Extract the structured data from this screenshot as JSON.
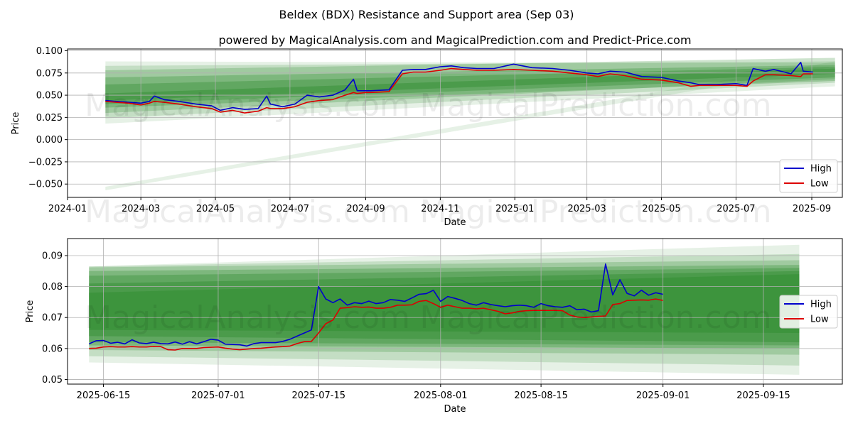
{
  "figure": {
    "title": "Beldex (BDX) Resistance and Support area (Sep 03)",
    "subtitle": "powered by MagicalAnalysis.com and MagicalPrediction.com and Predict-Price.com",
    "watermark_1": "MagicalAnalysis.com",
    "watermark_2": "MagicalPrediction.com"
  },
  "colors": {
    "high": "#0000cc",
    "low": "#dd0000",
    "band": "#2e8b2e",
    "grid": "#b0b0b0"
  },
  "chart_data": [
    {
      "type": "line",
      "name": "full-range",
      "xlabel": "Date",
      "ylabel": "Price",
      "xlim": [
        "2024-01-01",
        "2025-09-26"
      ],
      "ylim": [
        -0.065,
        0.102
      ],
      "x_ticks": [
        "2024-01",
        "2024-03",
        "2024-05",
        "2024-07",
        "2024-09",
        "2024-11",
        "2025-01",
        "2025-03",
        "2025-05",
        "2025-07",
        "2025-09"
      ],
      "y_ticks": [
        "0.100",
        "0.075",
        "0.050",
        "0.025",
        "0.000",
        "−0.025",
        "−0.050"
      ],
      "y_tick_values": [
        0.1,
        0.075,
        0.05,
        0.025,
        0.0,
        -0.025,
        -0.05
      ],
      "legend": [
        "High",
        "Low"
      ],
      "legend_position": "lower-right",
      "bands": [
        {
          "x": [
            "2024-02-01",
            "2025-09-20"
          ],
          "top": [
            0.088,
            0.086
          ],
          "bottom": [
            0.018,
            0.06
          ]
        },
        {
          "x": [
            "2024-02-01",
            "2025-09-20"
          ],
          "top": [
            0.083,
            0.088
          ],
          "bottom": [
            0.024,
            0.064
          ]
        },
        {
          "x": [
            "2024-02-01",
            "2025-09-20"
          ],
          "top": [
            0.078,
            0.092
          ],
          "bottom": [
            0.03,
            0.068
          ]
        },
        {
          "x": [
            "2024-02-01",
            "2025-09-20"
          ],
          "top": [
            0.07,
            0.084
          ],
          "bottom": [
            0.036,
            0.066
          ]
        },
        {
          "x": [
            "2024-02-01",
            "2025-09-20"
          ],
          "top": [
            0.062,
            0.082
          ],
          "bottom": [
            0.04,
            0.07
          ]
        },
        {
          "x": [
            "2024-02-01",
            "2025-09-20"
          ],
          "top": [
            0.052,
            0.08
          ],
          "bottom": [
            0.044,
            0.074
          ]
        },
        {
          "x": [
            "2024-02-01",
            "2025-09-20"
          ],
          "top": [
            -0.053,
            0.088
          ],
          "bottom": [
            -0.057,
            0.082
          ]
        }
      ],
      "series": [
        {
          "name": "High",
          "x": [
            "2024-02-01",
            "2024-02-10",
            "2024-02-20",
            "2024-03-01",
            "2024-03-08",
            "2024-03-12",
            "2024-03-20",
            "2024-04-01",
            "2024-04-15",
            "2024-04-28",
            "2024-05-05",
            "2024-05-15",
            "2024-05-25",
            "2024-06-05",
            "2024-06-12",
            "2024-06-15",
            "2024-06-25",
            "2024-07-05",
            "2024-07-15",
            "2024-07-25",
            "2024-08-05",
            "2024-08-15",
            "2024-08-22",
            "2024-08-25",
            "2024-09-01",
            "2024-09-05",
            "2024-09-20",
            "2024-10-01",
            "2024-10-10",
            "2024-10-20",
            "2024-11-01",
            "2024-11-10",
            "2024-11-20",
            "2024-12-01",
            "2024-12-15",
            "2024-12-31",
            "2025-01-15",
            "2025-02-01",
            "2025-02-15",
            "2025-03-01",
            "2025-03-10",
            "2025-03-20",
            "2025-04-01",
            "2025-04-15",
            "2025-05-01",
            "2025-05-15",
            "2025-05-25",
            "2025-06-01",
            "2025-06-15",
            "2025-07-01",
            "2025-07-10",
            "2025-07-15",
            "2025-07-25",
            "2025-08-01",
            "2025-08-15",
            "2025-08-23",
            "2025-08-25",
            "2025-09-02"
          ],
          "y": [
            0.044,
            0.043,
            0.042,
            0.041,
            0.043,
            0.049,
            0.045,
            0.043,
            0.04,
            0.038,
            0.033,
            0.036,
            0.034,
            0.035,
            0.049,
            0.04,
            0.037,
            0.04,
            0.05,
            0.048,
            0.05,
            0.056,
            0.068,
            0.055,
            0.055,
            0.055,
            0.056,
            0.078,
            0.079,
            0.079,
            0.082,
            0.083,
            0.081,
            0.08,
            0.08,
            0.085,
            0.081,
            0.08,
            0.078,
            0.075,
            0.074,
            0.077,
            0.076,
            0.071,
            0.07,
            0.066,
            0.064,
            0.062,
            0.062,
            0.063,
            0.061,
            0.08,
            0.077,
            0.079,
            0.074,
            0.087,
            0.077,
            0.076
          ]
        },
        {
          "name": "Low",
          "x": [
            "2024-02-01",
            "2024-02-10",
            "2024-02-20",
            "2024-03-01",
            "2024-03-08",
            "2024-03-12",
            "2024-03-20",
            "2024-04-01",
            "2024-04-15",
            "2024-04-28",
            "2024-05-05",
            "2024-05-15",
            "2024-05-25",
            "2024-06-05",
            "2024-06-12",
            "2024-06-15",
            "2024-06-25",
            "2024-07-05",
            "2024-07-15",
            "2024-07-25",
            "2024-08-05",
            "2024-08-15",
            "2024-08-22",
            "2024-08-25",
            "2024-09-01",
            "2024-09-05",
            "2024-09-20",
            "2024-10-01",
            "2024-10-10",
            "2024-10-20",
            "2024-11-01",
            "2024-11-10",
            "2024-11-20",
            "2024-12-01",
            "2024-12-15",
            "2024-12-31",
            "2025-01-15",
            "2025-02-01",
            "2025-02-15",
            "2025-03-01",
            "2025-03-10",
            "2025-03-20",
            "2025-04-01",
            "2025-04-15",
            "2025-05-01",
            "2025-05-15",
            "2025-05-25",
            "2025-06-01",
            "2025-06-15",
            "2025-07-01",
            "2025-07-10",
            "2025-07-15",
            "2025-07-25",
            "2025-08-01",
            "2025-08-15",
            "2025-08-23",
            "2025-08-25",
            "2025-09-02"
          ],
          "y": [
            0.043,
            0.042,
            0.041,
            0.039,
            0.041,
            0.043,
            0.042,
            0.04,
            0.037,
            0.035,
            0.031,
            0.033,
            0.03,
            0.032,
            0.036,
            0.035,
            0.035,
            0.037,
            0.042,
            0.044,
            0.045,
            0.05,
            0.053,
            0.052,
            0.053,
            0.053,
            0.054,
            0.074,
            0.076,
            0.076,
            0.078,
            0.08,
            0.079,
            0.078,
            0.078,
            0.079,
            0.078,
            0.077,
            0.075,
            0.073,
            0.071,
            0.074,
            0.072,
            0.068,
            0.067,
            0.064,
            0.06,
            0.061,
            0.061,
            0.061,
            0.06,
            0.066,
            0.073,
            0.073,
            0.072,
            0.071,
            0.074,
            0.074
          ]
        }
      ]
    },
    {
      "type": "line",
      "name": "zoomed-range",
      "xlabel": "Date",
      "ylabel": "Price",
      "xlim": [
        "2025-06-10",
        "2025-09-26"
      ],
      "ylim": [
        0.0485,
        0.0955
      ],
      "x_ticks": [
        "2025-06-15",
        "2025-07-01",
        "2025-07-15",
        "2025-08-01",
        "2025-08-15",
        "2025-09-01",
        "2025-09-15"
      ],
      "y_ticks": [
        "0.09",
        "0.08",
        "0.07",
        "0.06",
        "0.05"
      ],
      "y_tick_values": [
        0.09,
        0.08,
        0.07,
        0.06,
        0.05
      ],
      "legend": [
        "High",
        "Low"
      ],
      "legend_position": "center-right",
      "bands": [
        {
          "x": [
            "2025-06-13",
            "2025-09-20"
          ],
          "top": [
            0.0865,
            0.0935
          ],
          "bottom": [
            0.0555,
            0.0515
          ]
        },
        {
          "x": [
            "2025-06-13",
            "2025-09-20"
          ],
          "top": [
            0.0865,
            0.0905
          ],
          "bottom": [
            0.0575,
            0.0545
          ]
        },
        {
          "x": [
            "2025-06-13",
            "2025-09-20"
          ],
          "top": [
            0.0862,
            0.0885
          ],
          "bottom": [
            0.0595,
            0.058
          ]
        },
        {
          "x": [
            "2025-06-13",
            "2025-09-20"
          ],
          "top": [
            0.085,
            0.087
          ],
          "bottom": [
            0.061,
            0.06
          ]
        },
        {
          "x": [
            "2025-06-13",
            "2025-09-20"
          ],
          "top": [
            0.0835,
            0.086
          ],
          "bottom": [
            0.062,
            0.061
          ]
        },
        {
          "x": [
            "2025-06-13",
            "2025-09-20"
          ],
          "top": [
            0.081,
            0.085
          ],
          "bottom": [
            0.064,
            0.062
          ]
        },
        {
          "x": [
            "2025-06-13",
            "2025-09-20"
          ],
          "top": [
            0.078,
            0.084
          ],
          "bottom": [
            0.066,
            0.065
          ]
        }
      ],
      "series": [
        {
          "name": "High",
          "x": [
            "2025-06-13",
            "2025-06-14",
            "2025-06-15",
            "2025-06-16",
            "2025-06-17",
            "2025-06-18",
            "2025-06-19",
            "2025-06-20",
            "2025-06-21",
            "2025-06-22",
            "2025-06-23",
            "2025-06-24",
            "2025-06-25",
            "2025-06-26",
            "2025-06-27",
            "2025-06-28",
            "2025-06-29",
            "2025-06-30",
            "2025-07-01",
            "2025-07-02",
            "2025-07-03",
            "2025-07-04",
            "2025-07-05",
            "2025-07-06",
            "2025-07-07",
            "2025-07-08",
            "2025-07-09",
            "2025-07-10",
            "2025-07-11",
            "2025-07-12",
            "2025-07-13",
            "2025-07-14",
            "2025-07-15",
            "2025-07-16",
            "2025-07-17",
            "2025-07-18",
            "2025-07-19",
            "2025-07-20",
            "2025-07-21",
            "2025-07-22",
            "2025-07-23",
            "2025-07-24",
            "2025-07-25",
            "2025-07-26",
            "2025-07-27",
            "2025-07-28",
            "2025-07-29",
            "2025-07-30",
            "2025-07-31",
            "2025-08-01",
            "2025-08-02",
            "2025-08-03",
            "2025-08-04",
            "2025-08-05",
            "2025-08-06",
            "2025-08-07",
            "2025-08-08",
            "2025-08-09",
            "2025-08-10",
            "2025-08-11",
            "2025-08-12",
            "2025-08-13",
            "2025-08-14",
            "2025-08-15",
            "2025-08-16",
            "2025-08-17",
            "2025-08-18",
            "2025-08-19",
            "2025-08-20",
            "2025-08-21",
            "2025-08-22",
            "2025-08-23",
            "2025-08-24",
            "2025-08-25",
            "2025-08-26",
            "2025-08-27",
            "2025-08-28",
            "2025-08-29",
            "2025-08-30",
            "2025-08-31",
            "2025-09-01"
          ],
          "y": [
            0.0615,
            0.0625,
            0.0626,
            0.0617,
            0.062,
            0.0615,
            0.0628,
            0.0618,
            0.0616,
            0.062,
            0.0616,
            0.0615,
            0.0621,
            0.0614,
            0.0622,
            0.0615,
            0.0622,
            0.063,
            0.0627,
            0.0614,
            0.0613,
            0.0612,
            0.0608,
            0.0616,
            0.0619,
            0.0619,
            0.0619,
            0.0623,
            0.063,
            0.064,
            0.065,
            0.066,
            0.08,
            0.076,
            0.0748,
            0.076,
            0.074,
            0.0748,
            0.0745,
            0.0753,
            0.0745,
            0.0748,
            0.0758,
            0.0756,
            0.0752,
            0.0763,
            0.0775,
            0.0777,
            0.0788,
            0.0752,
            0.0768,
            0.0762,
            0.0755,
            0.0745,
            0.074,
            0.0748,
            0.0742,
            0.0738,
            0.0735,
            0.0738,
            0.074,
            0.0738,
            0.0733,
            0.0745,
            0.0738,
            0.0735,
            0.0733,
            0.0738,
            0.0725,
            0.0727,
            0.0718,
            0.0722,
            0.0873,
            0.0773,
            0.0822,
            0.0778,
            0.077,
            0.0788,
            0.0772,
            0.078,
            0.0775
          ]
        },
        {
          "name": "Low",
          "x": [
            "2025-06-13",
            "2025-06-14",
            "2025-06-15",
            "2025-06-16",
            "2025-06-17",
            "2025-06-18",
            "2025-06-19",
            "2025-06-20",
            "2025-06-21",
            "2025-06-22",
            "2025-06-23",
            "2025-06-24",
            "2025-06-25",
            "2025-06-26",
            "2025-06-27",
            "2025-06-28",
            "2025-06-29",
            "2025-06-30",
            "2025-07-01",
            "2025-07-02",
            "2025-07-03",
            "2025-07-04",
            "2025-07-05",
            "2025-07-06",
            "2025-07-07",
            "2025-07-08",
            "2025-07-09",
            "2025-07-10",
            "2025-07-11",
            "2025-07-12",
            "2025-07-13",
            "2025-07-14",
            "2025-07-15",
            "2025-07-16",
            "2025-07-17",
            "2025-07-18",
            "2025-07-19",
            "2025-07-20",
            "2025-07-21",
            "2025-07-22",
            "2025-07-23",
            "2025-07-24",
            "2025-07-25",
            "2025-07-26",
            "2025-07-27",
            "2025-07-28",
            "2025-07-29",
            "2025-07-30",
            "2025-07-31",
            "2025-08-01",
            "2025-08-02",
            "2025-08-03",
            "2025-08-04",
            "2025-08-05",
            "2025-08-06",
            "2025-08-07",
            "2025-08-08",
            "2025-08-09",
            "2025-08-10",
            "2025-08-11",
            "2025-08-12",
            "2025-08-13",
            "2025-08-14",
            "2025-08-15",
            "2025-08-16",
            "2025-08-17",
            "2025-08-18",
            "2025-08-19",
            "2025-08-20",
            "2025-08-21",
            "2025-08-22",
            "2025-08-23",
            "2025-08-24",
            "2025-08-25",
            "2025-08-26",
            "2025-08-27",
            "2025-08-28",
            "2025-08-29",
            "2025-08-30",
            "2025-08-31",
            "2025-09-01"
          ],
          "y": [
            0.06,
            0.0601,
            0.0605,
            0.0606,
            0.0605,
            0.0605,
            0.0606,
            0.0605,
            0.0605,
            0.0607,
            0.0606,
            0.0596,
            0.0595,
            0.06,
            0.06,
            0.06,
            0.0603,
            0.0604,
            0.0605,
            0.0601,
            0.0598,
            0.0596,
            0.0598,
            0.06,
            0.0601,
            0.0603,
            0.0605,
            0.0606,
            0.0608,
            0.0616,
            0.0622,
            0.0623,
            0.065,
            0.068,
            0.0692,
            0.073,
            0.0732,
            0.0735,
            0.0733,
            0.0734,
            0.073,
            0.073,
            0.0733,
            0.074,
            0.074,
            0.0741,
            0.0752,
            0.0755,
            0.0745,
            0.0733,
            0.074,
            0.0735,
            0.073,
            0.073,
            0.0728,
            0.073,
            0.0725,
            0.072,
            0.0712,
            0.0715,
            0.072,
            0.0722,
            0.0723,
            0.0723,
            0.0723,
            0.0723,
            0.0722,
            0.0708,
            0.0702,
            0.07,
            0.0702,
            0.0704,
            0.0705,
            0.0742,
            0.0745,
            0.0755,
            0.0756,
            0.0757,
            0.0756,
            0.076,
            0.0755
          ]
        }
      ]
    }
  ]
}
